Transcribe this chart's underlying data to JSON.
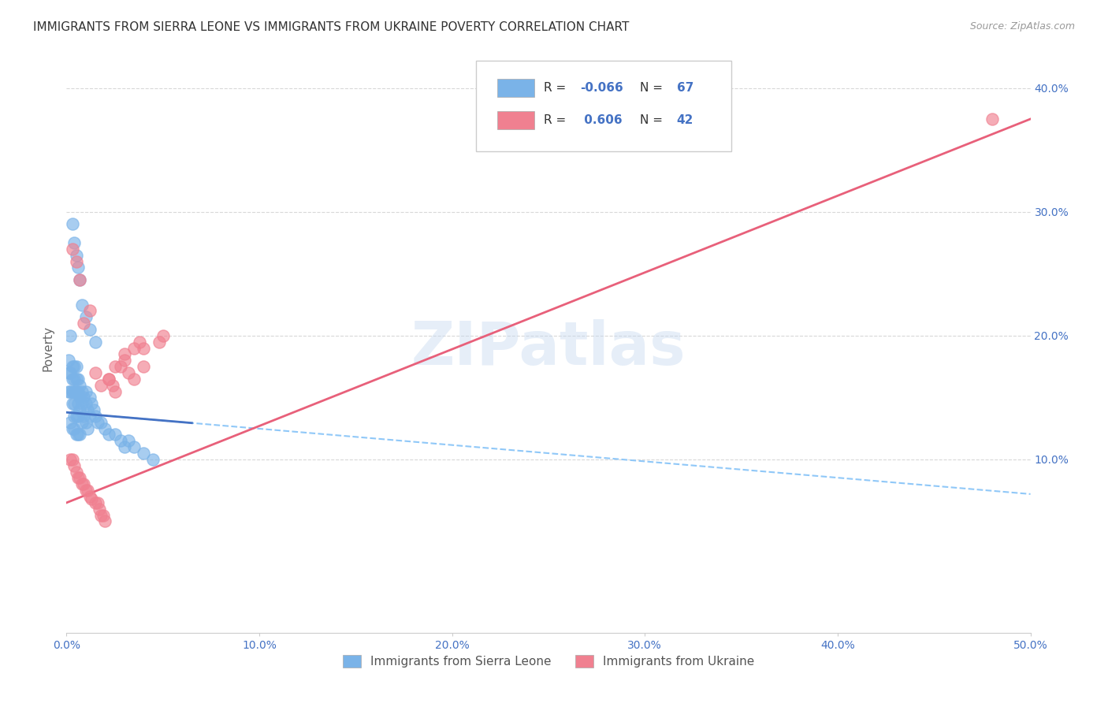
{
  "title": "IMMIGRANTS FROM SIERRA LEONE VS IMMIGRANTS FROM UKRAINE POVERTY CORRELATION CHART",
  "source": "Source: ZipAtlas.com",
  "ylabel": "Poverty",
  "legend_entry1": {
    "R": -0.066,
    "N": 67,
    "label": "Immigrants from Sierra Leone"
  },
  "legend_entry2": {
    "R": 0.606,
    "N": 42,
    "label": "Immigrants from Ukraine"
  },
  "watermark": "ZIPatlas",
  "sierra_leone_scatter": {
    "x": [
      0.001,
      0.001,
      0.001,
      0.002,
      0.002,
      0.002,
      0.002,
      0.003,
      0.003,
      0.003,
      0.003,
      0.003,
      0.004,
      0.004,
      0.004,
      0.004,
      0.004,
      0.004,
      0.005,
      0.005,
      0.005,
      0.005,
      0.005,
      0.006,
      0.006,
      0.006,
      0.006,
      0.006,
      0.007,
      0.007,
      0.007,
      0.007,
      0.008,
      0.008,
      0.008,
      0.009,
      0.009,
      0.01,
      0.01,
      0.01,
      0.011,
      0.011,
      0.012,
      0.012,
      0.013,
      0.014,
      0.015,
      0.016,
      0.018,
      0.02,
      0.022,
      0.025,
      0.028,
      0.03,
      0.032,
      0.035,
      0.04,
      0.045,
      0.003,
      0.004,
      0.005,
      0.006,
      0.007,
      0.008,
      0.01,
      0.012,
      0.015
    ],
    "y": [
      0.18,
      0.17,
      0.155,
      0.2,
      0.17,
      0.155,
      0.13,
      0.175,
      0.165,
      0.155,
      0.145,
      0.125,
      0.175,
      0.165,
      0.155,
      0.145,
      0.135,
      0.125,
      0.175,
      0.165,
      0.155,
      0.135,
      0.12,
      0.165,
      0.155,
      0.145,
      0.135,
      0.12,
      0.16,
      0.15,
      0.14,
      0.12,
      0.155,
      0.145,
      0.13,
      0.15,
      0.135,
      0.155,
      0.145,
      0.13,
      0.14,
      0.125,
      0.15,
      0.135,
      0.145,
      0.14,
      0.135,
      0.13,
      0.13,
      0.125,
      0.12,
      0.12,
      0.115,
      0.11,
      0.115,
      0.11,
      0.105,
      0.1,
      0.29,
      0.275,
      0.265,
      0.255,
      0.245,
      0.225,
      0.215,
      0.205,
      0.195
    ]
  },
  "ukraine_scatter": {
    "x": [
      0.002,
      0.003,
      0.004,
      0.005,
      0.006,
      0.007,
      0.008,
      0.009,
      0.01,
      0.011,
      0.012,
      0.013,
      0.015,
      0.016,
      0.017,
      0.018,
      0.019,
      0.02,
      0.022,
      0.024,
      0.025,
      0.028,
      0.03,
      0.032,
      0.035,
      0.038,
      0.04,
      0.003,
      0.005,
      0.007,
      0.009,
      0.012,
      0.015,
      0.018,
      0.022,
      0.025,
      0.03,
      0.035,
      0.04,
      0.048,
      0.05,
      0.48
    ],
    "y": [
      0.1,
      0.1,
      0.095,
      0.09,
      0.085,
      0.085,
      0.08,
      0.08,
      0.075,
      0.075,
      0.07,
      0.068,
      0.065,
      0.065,
      0.06,
      0.055,
      0.055,
      0.05,
      0.165,
      0.16,
      0.155,
      0.175,
      0.18,
      0.17,
      0.19,
      0.195,
      0.175,
      0.27,
      0.26,
      0.245,
      0.21,
      0.22,
      0.17,
      0.16,
      0.165,
      0.175,
      0.185,
      0.165,
      0.19,
      0.195,
      0.2,
      0.375
    ]
  },
  "sierra_leone_line": {
    "x0": 0.0,
    "x1": 0.5,
    "y0": 0.138,
    "y1": 0.072
  },
  "ukraine_line": {
    "x0": 0.0,
    "x1": 0.5,
    "y0": 0.065,
    "y1": 0.375
  },
  "xlim": [
    0.0,
    0.5
  ],
  "ylim": [
    -0.04,
    0.42
  ],
  "xticks": [
    0.0,
    0.1,
    0.2,
    0.3,
    0.4,
    0.5
  ],
  "xticklabels": [
    "0.0%",
    "10.0%",
    "20.0%",
    "30.0%",
    "40.0%",
    "50.0%"
  ],
  "yticks": [
    0.1,
    0.2,
    0.3,
    0.4
  ],
  "yticklabels": [
    "10.0%",
    "20.0%",
    "30.0%",
    "40.0%"
  ],
  "background_color": "#ffffff",
  "scatter_color_sl": "#7ab3e8",
  "scatter_color_uk": "#f08090",
  "line_color_sl": "#90c8f8",
  "line_color_uk": "#e8607a",
  "tick_label_color": "#4472c4",
  "title_fontsize": 11,
  "source_fontsize": 9,
  "grid_color": "#d8d8d8"
}
